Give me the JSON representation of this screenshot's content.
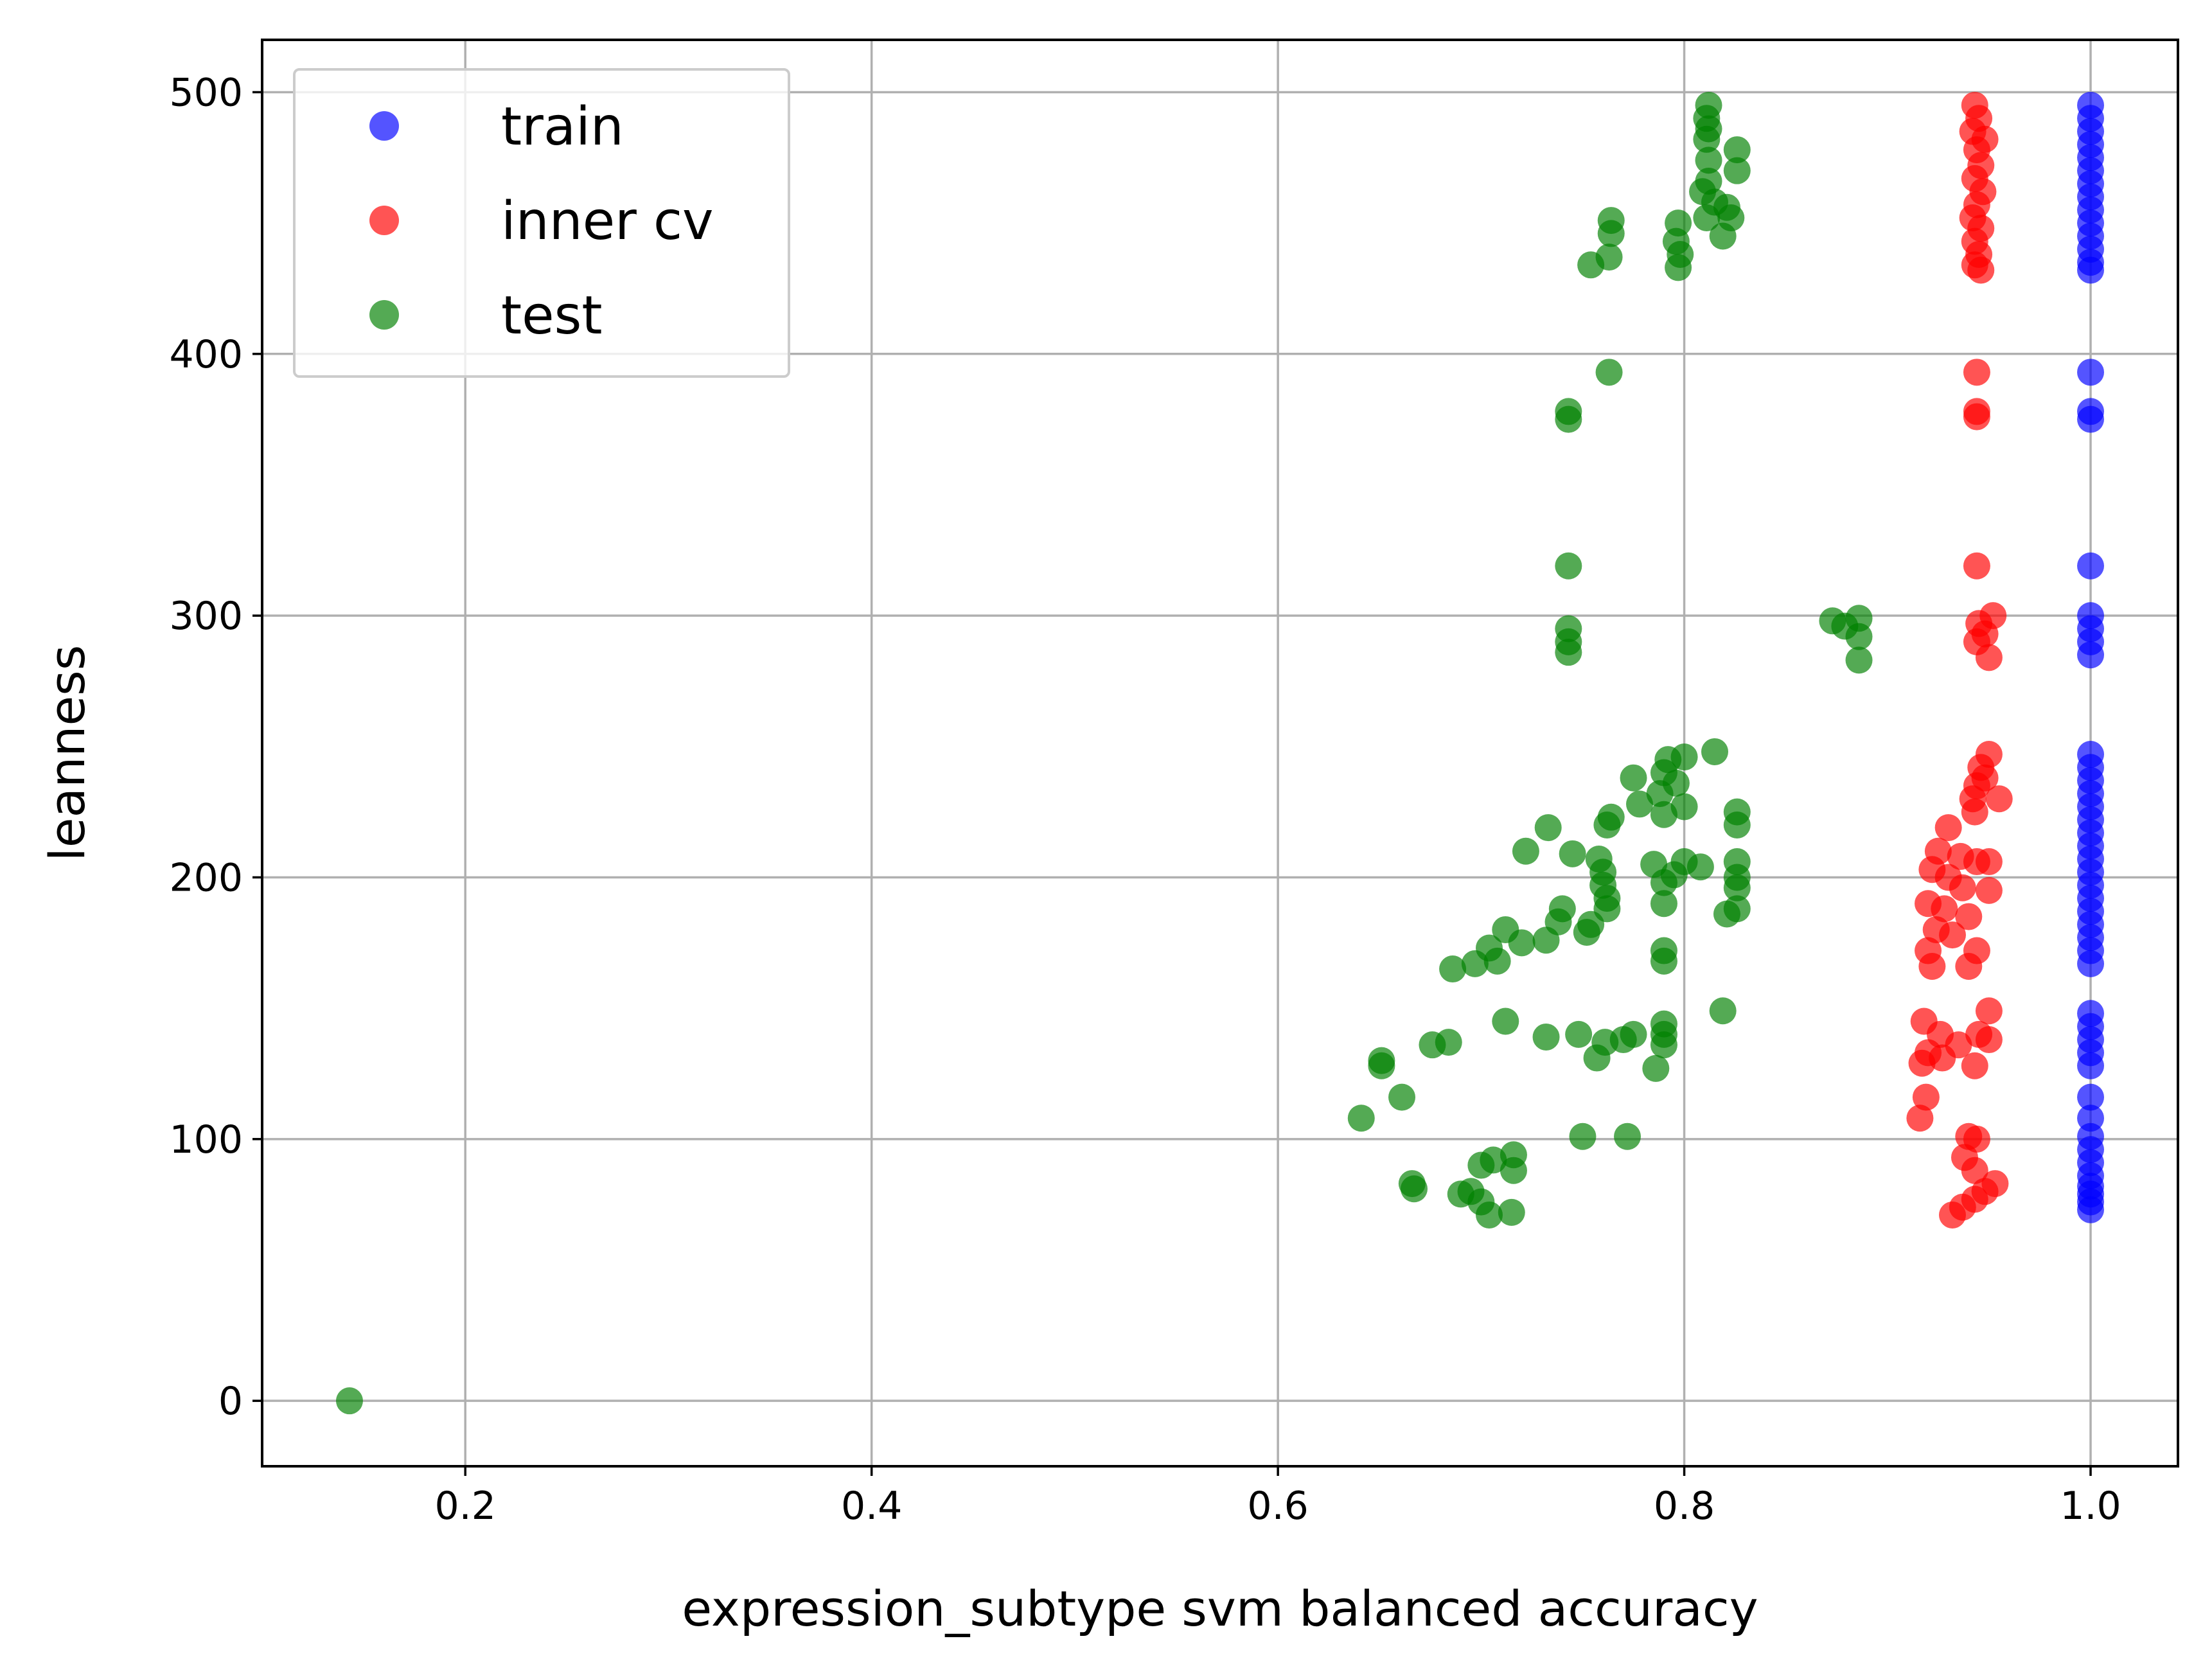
{
  "chart_data": {
    "type": "scatter",
    "title": "",
    "xlabel": "expression_subtype svm balanced accuracy",
    "ylabel": "leanness",
    "xlim": [
      0.1,
      1.043
    ],
    "ylim": [
      -25,
      520
    ],
    "xticks": [
      0.2,
      0.4,
      0.6,
      0.8,
      1.0
    ],
    "xtick_labels": [
      "0.2",
      "0.4",
      "0.6",
      "0.8",
      "1.0"
    ],
    "yticks": [
      0,
      100,
      200,
      300,
      400,
      500
    ],
    "ytick_labels": [
      "0",
      "100",
      "200",
      "300",
      "400",
      "500"
    ],
    "grid": true,
    "legend_position": "upper-left",
    "series": [
      {
        "name": "train",
        "color": "#0000ff",
        "points": [
          [
            1.0,
            495
          ],
          [
            1.0,
            490
          ],
          [
            1.0,
            485
          ],
          [
            1.0,
            480
          ],
          [
            1.0,
            475
          ],
          [
            1.0,
            470
          ],
          [
            1.0,
            465
          ],
          [
            1.0,
            460
          ],
          [
            1.0,
            455
          ],
          [
            1.0,
            450
          ],
          [
            1.0,
            445
          ],
          [
            1.0,
            440
          ],
          [
            1.0,
            435
          ],
          [
            1.0,
            432
          ],
          [
            1.0,
            393
          ],
          [
            1.0,
            378
          ],
          [
            1.0,
            375
          ],
          [
            1.0,
            319
          ],
          [
            1.0,
            300
          ],
          [
            1.0,
            295
          ],
          [
            1.0,
            290
          ],
          [
            1.0,
            285
          ],
          [
            1.0,
            247
          ],
          [
            1.0,
            242
          ],
          [
            1.0,
            237
          ],
          [
            1.0,
            232
          ],
          [
            1.0,
            227
          ],
          [
            1.0,
            222
          ],
          [
            1.0,
            217
          ],
          [
            1.0,
            212
          ],
          [
            1.0,
            207
          ],
          [
            1.0,
            202
          ],
          [
            1.0,
            197
          ],
          [
            1.0,
            192
          ],
          [
            1.0,
            187
          ],
          [
            1.0,
            182
          ],
          [
            1.0,
            177
          ],
          [
            1.0,
            172
          ],
          [
            1.0,
            167
          ],
          [
            1.0,
            148
          ],
          [
            1.0,
            143
          ],
          [
            1.0,
            138
          ],
          [
            1.0,
            133
          ],
          [
            1.0,
            128
          ],
          [
            1.0,
            116
          ],
          [
            1.0,
            108
          ],
          [
            1.0,
            101
          ],
          [
            1.0,
            96
          ],
          [
            1.0,
            91
          ],
          [
            1.0,
            86
          ],
          [
            1.0,
            82
          ],
          [
            1.0,
            79
          ],
          [
            1.0,
            76
          ],
          [
            1.0,
            73
          ]
        ]
      },
      {
        "name": "inner cv",
        "color": "#ff0000",
        "points": [
          [
            0.943,
            495
          ],
          [
            0.945,
            490
          ],
          [
            0.942,
            485
          ],
          [
            0.948,
            482
          ],
          [
            0.944,
            478
          ],
          [
            0.946,
            472
          ],
          [
            0.943,
            467
          ],
          [
            0.947,
            462
          ],
          [
            0.944,
            457
          ],
          [
            0.942,
            452
          ],
          [
            0.946,
            448
          ],
          [
            0.943,
            443
          ],
          [
            0.945,
            438
          ],
          [
            0.943,
            434
          ],
          [
            0.946,
            432
          ],
          [
            0.944,
            393
          ],
          [
            0.944,
            378
          ],
          [
            0.944,
            376
          ],
          [
            0.944,
            319
          ],
          [
            0.952,
            300
          ],
          [
            0.945,
            297
          ],
          [
            0.948,
            293
          ],
          [
            0.944,
            290
          ],
          [
            0.95,
            284
          ],
          [
            0.95,
            247
          ],
          [
            0.946,
            242
          ],
          [
            0.948,
            238
          ],
          [
            0.944,
            235
          ],
          [
            0.942,
            230
          ],
          [
            0.955,
            230
          ],
          [
            0.943,
            225
          ],
          [
            0.93,
            219
          ],
          [
            0.925,
            210
          ],
          [
            0.936,
            208
          ],
          [
            0.944,
            206
          ],
          [
            0.95,
            206
          ],
          [
            0.922,
            203
          ],
          [
            0.93,
            200
          ],
          [
            0.937,
            196
          ],
          [
            0.95,
            195
          ],
          [
            0.92,
            190
          ],
          [
            0.928,
            188
          ],
          [
            0.94,
            185
          ],
          [
            0.924,
            180
          ],
          [
            0.932,
            178
          ],
          [
            0.92,
            172
          ],
          [
            0.944,
            172
          ],
          [
            0.922,
            166
          ],
          [
            0.94,
            166
          ],
          [
            0.95,
            149
          ],
          [
            0.918,
            145
          ],
          [
            0.926,
            140
          ],
          [
            0.945,
            140
          ],
          [
            0.95,
            138
          ],
          [
            0.935,
            136
          ],
          [
            0.92,
            133
          ],
          [
            0.927,
            131
          ],
          [
            0.917,
            129
          ],
          [
            0.943,
            128
          ],
          [
            0.919,
            116
          ],
          [
            0.916,
            108
          ],
          [
            0.94,
            101
          ],
          [
            0.944,
            100
          ],
          [
            0.938,
            93
          ],
          [
            0.943,
            88
          ],
          [
            0.953,
            83
          ],
          [
            0.948,
            80
          ],
          [
            0.943,
            77
          ],
          [
            0.937,
            74
          ],
          [
            0.932,
            71
          ]
        ]
      },
      {
        "name": "test",
        "color": "#008000",
        "points": [
          [
            0.143,
            0
          ],
          [
            0.812,
            495
          ],
          [
            0.811,
            490
          ],
          [
            0.812,
            486
          ],
          [
            0.811,
            482
          ],
          [
            0.826,
            478
          ],
          [
            0.812,
            474
          ],
          [
            0.826,
            470
          ],
          [
            0.812,
            466
          ],
          [
            0.809,
            462
          ],
          [
            0.815,
            458
          ],
          [
            0.821,
            456
          ],
          [
            0.823,
            452
          ],
          [
            0.797,
            450
          ],
          [
            0.764,
            451
          ],
          [
            0.764,
            446
          ],
          [
            0.811,
            452
          ],
          [
            0.819,
            445
          ],
          [
            0.796,
            443
          ],
          [
            0.798,
            438
          ],
          [
            0.763,
            437
          ],
          [
            0.754,
            434
          ],
          [
            0.797,
            433
          ],
          [
            0.763,
            393
          ],
          [
            0.743,
            378
          ],
          [
            0.743,
            375
          ],
          [
            0.743,
            319
          ],
          [
            0.743,
            295
          ],
          [
            0.743,
            290
          ],
          [
            0.743,
            286
          ],
          [
            0.873,
            298
          ],
          [
            0.886,
            299
          ],
          [
            0.879,
            296
          ],
          [
            0.886,
            292
          ],
          [
            0.886,
            283
          ],
          [
            0.815,
            248
          ],
          [
            0.792,
            245
          ],
          [
            0.8,
            246
          ],
          [
            0.79,
            240
          ],
          [
            0.775,
            238
          ],
          [
            0.796,
            236
          ],
          [
            0.788,
            232
          ],
          [
            0.778,
            228
          ],
          [
            0.8,
            227
          ],
          [
            0.79,
            224
          ],
          [
            0.764,
            223
          ],
          [
            0.826,
            225
          ],
          [
            0.762,
            220
          ],
          [
            0.826,
            220
          ],
          [
            0.733,
            219
          ],
          [
            0.722,
            210
          ],
          [
            0.745,
            209
          ],
          [
            0.758,
            207
          ],
          [
            0.785,
            205
          ],
          [
            0.8,
            206
          ],
          [
            0.826,
            206
          ],
          [
            0.808,
            204
          ],
          [
            0.76,
            202
          ],
          [
            0.795,
            201
          ],
          [
            0.826,
            200
          ],
          [
            0.79,
            198
          ],
          [
            0.76,
            197
          ],
          [
            0.826,
            196
          ],
          [
            0.762,
            192
          ],
          [
            0.79,
            190
          ],
          [
            0.74,
            188
          ],
          [
            0.762,
            188
          ],
          [
            0.826,
            188
          ],
          [
            0.821,
            186
          ],
          [
            0.738,
            183
          ],
          [
            0.754,
            182
          ],
          [
            0.752,
            179
          ],
          [
            0.712,
            180
          ],
          [
            0.732,
            176
          ],
          [
            0.72,
            175
          ],
          [
            0.704,
            173
          ],
          [
            0.79,
            172
          ],
          [
            0.79,
            168
          ],
          [
            0.697,
            167
          ],
          [
            0.708,
            168
          ],
          [
            0.686,
            165
          ],
          [
            0.819,
            149
          ],
          [
            0.712,
            145
          ],
          [
            0.79,
            144
          ],
          [
            0.79,
            140
          ],
          [
            0.748,
            140
          ],
          [
            0.775,
            140
          ],
          [
            0.77,
            138
          ],
          [
            0.732,
            139
          ],
          [
            0.79,
            136
          ],
          [
            0.761,
            137
          ],
          [
            0.676,
            136
          ],
          [
            0.684,
            137
          ],
          [
            0.757,
            131
          ],
          [
            0.651,
            130
          ],
          [
            0.651,
            128
          ],
          [
            0.786,
            127
          ],
          [
            0.661,
            116
          ],
          [
            0.641,
            108
          ],
          [
            0.75,
            101
          ],
          [
            0.772,
            101
          ],
          [
            0.716,
            94
          ],
          [
            0.706,
            92
          ],
          [
            0.7,
            90
          ],
          [
            0.716,
            88
          ],
          [
            0.666,
            83
          ],
          [
            0.667,
            81
          ],
          [
            0.69,
            79
          ],
          [
            0.695,
            80
          ],
          [
            0.7,
            76
          ],
          [
            0.715,
            72
          ],
          [
            0.704,
            71
          ]
        ]
      }
    ]
  }
}
